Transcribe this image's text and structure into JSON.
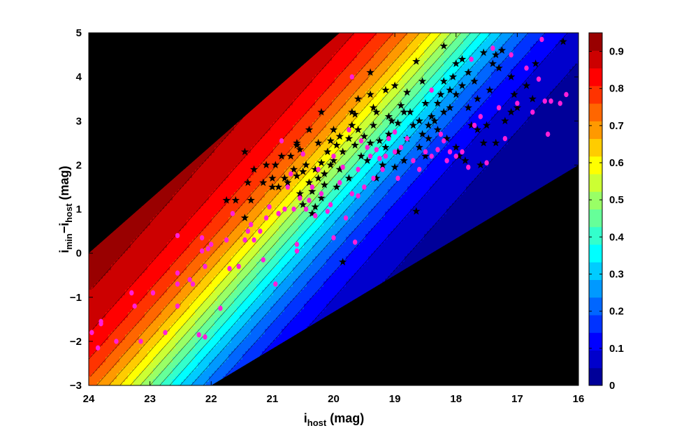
{
  "chart_data": {
    "type": "scatter",
    "xlabel": {
      "main": "i",
      "sub": "host",
      "suffix": " (mag)"
    },
    "ylabel": {
      "main": "i",
      "sub1": "min",
      "dash": "−i",
      "sub2": "host",
      "suffix": " (mag)"
    },
    "xlim": [
      24,
      16
    ],
    "ylim": [
      -3,
      5
    ],
    "x_reversed": true,
    "xticks": [
      "24",
      "23",
      "22",
      "21",
      "20",
      "19",
      "18",
      "17",
      "16"
    ],
    "yticks": [
      "-3",
      "-2",
      "-1",
      "0",
      "1",
      "2",
      "3",
      "4",
      "5"
    ],
    "colorbar": {
      "range": [
        0,
        0.95
      ],
      "ticks": [
        "0",
        "0.1",
        "0.2",
        "0.3",
        "0.4",
        "0.5",
        "0.6",
        "0.7",
        "0.8",
        "0.9"
      ],
      "colormap": "jet",
      "levels": 20
    },
    "masked_color": "#000000",
    "valid_region": {
      "upper_boundary": [
        [
          24,
          0
        ],
        [
          19.9,
          5
        ]
      ],
      "lower_boundary": [
        [
          22,
          -3
        ],
        [
          16,
          2
        ]
      ]
    },
    "series": [
      {
        "marker": "star",
        "color": "#000000",
        "points": [
          [
            21.75,
            1.2
          ],
          [
            21.6,
            1.2
          ],
          [
            21.45,
            0.8
          ],
          [
            21.35,
            1.2
          ],
          [
            21.4,
            1.6
          ],
          [
            21.3,
            1.9
          ],
          [
            21.45,
            2.3
          ],
          [
            21.15,
            1.6
          ],
          [
            21.0,
            1.5
          ],
          [
            20.9,
            1.5
          ],
          [
            21.0,
            1.7
          ],
          [
            20.8,
            1.7
          ],
          [
            20.95,
            2.0
          ],
          [
            20.85,
            2.2
          ],
          [
            20.65,
            1.9
          ],
          [
            20.7,
            2.2
          ],
          [
            20.55,
            2.35
          ],
          [
            20.6,
            2.45
          ],
          [
            20.45,
            2.0
          ],
          [
            20.5,
            1.85
          ],
          [
            20.4,
            1.6
          ],
          [
            20.35,
            1.4
          ],
          [
            20.25,
            1.7
          ],
          [
            20.3,
            1.9
          ],
          [
            20.15,
            1.8
          ],
          [
            20.2,
            2.05
          ],
          [
            20.1,
            2.3
          ],
          [
            20.25,
            2.5
          ],
          [
            20.05,
            2.55
          ],
          [
            20.0,
            2.8
          ],
          [
            19.95,
            2.45
          ],
          [
            19.85,
            2.3
          ],
          [
            19.75,
            2.6
          ],
          [
            19.7,
            2.9
          ],
          [
            19.65,
            3.15
          ],
          [
            19.55,
            2.2
          ],
          [
            19.5,
            2.65
          ],
          [
            19.4,
            2.5
          ],
          [
            19.35,
            2.9
          ],
          [
            19.3,
            3.2
          ],
          [
            19.2,
            2.0
          ],
          [
            19.15,
            2.4
          ],
          [
            19.1,
            2.7
          ],
          [
            19.05,
            3.0
          ],
          [
            18.95,
            2.3
          ],
          [
            18.9,
            3.35
          ],
          [
            18.85,
            2.1
          ],
          [
            18.8,
            2.6
          ],
          [
            18.7,
            2.9
          ],
          [
            18.6,
            2.4
          ],
          [
            18.5,
            2.2
          ],
          [
            18.45,
            2.9
          ],
          [
            18.4,
            3.1
          ],
          [
            18.3,
            3.4
          ],
          [
            18.25,
            3.6
          ],
          [
            18.2,
            3.9
          ],
          [
            18.1,
            3.7
          ],
          [
            18.05,
            4.0
          ],
          [
            18.0,
            4.3
          ],
          [
            17.9,
            3.8
          ],
          [
            17.8,
            4.1
          ],
          [
            17.7,
            3.9
          ],
          [
            17.65,
            2.8
          ],
          [
            17.5,
            2.9
          ],
          [
            17.4,
            4.3
          ],
          [
            17.35,
            2.5
          ],
          [
            17.3,
            4.2
          ],
          [
            17.2,
            3.0
          ],
          [
            17.1,
            3.2
          ],
          [
            17.05,
            3.6
          ],
          [
            17.0,
            3.3
          ],
          [
            16.85,
            3.8
          ],
          [
            16.75,
            3.5
          ],
          [
            16.25,
            4.8
          ],
          [
            16.7,
            4.3
          ],
          [
            17.35,
            4.5
          ],
          [
            17.55,
            4.55
          ],
          [
            18.2,
            4.7
          ],
          [
            17.9,
            4.4
          ],
          [
            18.65,
            4.35
          ],
          [
            18.5,
            3.4
          ],
          [
            19.4,
            4.1
          ],
          [
            19.6,
            3.5
          ],
          [
            20.6,
            2.5
          ],
          [
            20.35,
            0.9
          ],
          [
            20.5,
            1.1
          ],
          [
            20.2,
            1.25
          ],
          [
            19.85,
            -0.2
          ],
          [
            19.3,
            1.7
          ],
          [
            18.65,
            0.95
          ],
          [
            19.0,
            1.95
          ],
          [
            19.9,
            1.9
          ],
          [
            20.0,
            2.1
          ],
          [
            20.2,
            3.2
          ],
          [
            19.7,
            3.2
          ],
          [
            19.4,
            3.6
          ],
          [
            19.15,
            3.7
          ],
          [
            19.0,
            3.8
          ],
          [
            18.8,
            3.65
          ],
          [
            18.75,
            3.2
          ],
          [
            18.6,
            3.0
          ],
          [
            18.35,
            3.0
          ],
          [
            18.1,
            3.3
          ],
          [
            17.95,
            2.2
          ],
          [
            17.85,
            2.1
          ],
          [
            17.75,
            2.9
          ],
          [
            17.55,
            2.5
          ],
          [
            17.6,
            2.0
          ],
          [
            18.0,
            2.4
          ],
          [
            18.15,
            2.6
          ],
          [
            18.45,
            2.6
          ],
          [
            18.55,
            3.9
          ],
          [
            18.95,
            2.95
          ],
          [
            19.25,
            2.55
          ],
          [
            19.45,
            2.1
          ],
          [
            19.65,
            2.45
          ],
          [
            19.9,
            2.65
          ],
          [
            20.05,
            2.0
          ],
          [
            20.4,
            2.8
          ],
          [
            20.75,
            1.6
          ],
          [
            20.6,
            1.75
          ],
          [
            21.1,
            2.0
          ],
          [
            20.55,
            1.35
          ],
          [
            20.3,
            1.05
          ],
          [
            20.15,
            1.55
          ],
          [
            19.95,
            1.5
          ],
          [
            19.75,
            1.7
          ],
          [
            19.6,
            2.8
          ],
          [
            19.35,
            3.3
          ],
          [
            19.1,
            3.1
          ],
          [
            18.85,
            3.2
          ],
          [
            18.55,
            2.7
          ],
          [
            18.3,
            2.8
          ],
          [
            18.2,
            3.2
          ],
          [
            18.0,
            3.6
          ],
          [
            17.8,
            3.3
          ],
          [
            17.65,
            3.5
          ],
          [
            17.45,
            3.7
          ],
          [
            17.25,
            4.6
          ],
          [
            17.1,
            4.0
          ]
        ]
      },
      {
        "marker": "dot",
        "color": "#ff1fd9",
        "points": [
          [
            23.95,
            -1.8
          ],
          [
            23.85,
            -2.15
          ],
          [
            23.8,
            -1.6
          ],
          [
            23.8,
            -1.55
          ],
          [
            23.55,
            -2.0
          ],
          [
            23.3,
            -0.9
          ],
          [
            23.25,
            -1.2
          ],
          [
            23.15,
            -2.0
          ],
          [
            22.95,
            -0.9
          ],
          [
            22.75,
            -1.8
          ],
          [
            22.55,
            -1.2
          ],
          [
            22.55,
            -0.7
          ],
          [
            22.55,
            -0.45
          ],
          [
            22.55,
            0.4
          ],
          [
            22.35,
            -0.6
          ],
          [
            22.3,
            -0.7
          ],
          [
            22.2,
            -1.85
          ],
          [
            22.15,
            0.35
          ],
          [
            22.15,
            0.05
          ],
          [
            22.1,
            -0.3
          ],
          [
            22.1,
            -1.9
          ],
          [
            22.05,
            0.1
          ],
          [
            22.0,
            0.2
          ],
          [
            21.85,
            -1.25
          ],
          [
            21.75,
            0.3
          ],
          [
            21.7,
            -0.35
          ],
          [
            21.65,
            0.9
          ],
          [
            21.55,
            -0.3
          ],
          [
            21.45,
            0.3
          ],
          [
            21.4,
            0.5
          ],
          [
            21.35,
            0.65
          ],
          [
            21.2,
            0.5
          ],
          [
            21.15,
            -0.15
          ],
          [
            21.05,
            1.05
          ],
          [
            20.95,
            -0.7
          ],
          [
            20.9,
            0.9
          ],
          [
            20.8,
            1.0
          ],
          [
            20.75,
            1.5
          ],
          [
            20.7,
            1.8
          ],
          [
            20.6,
            0.2
          ],
          [
            20.6,
            0.05
          ],
          [
            20.55,
            1.25
          ],
          [
            20.45,
            1.0
          ],
          [
            20.4,
            1.2
          ],
          [
            20.35,
            1.5
          ],
          [
            20.3,
            0.85
          ],
          [
            20.25,
            1.9
          ],
          [
            20.1,
            0.95
          ],
          [
            20.05,
            1.1
          ],
          [
            20.0,
            0.35
          ],
          [
            19.9,
            1.6
          ],
          [
            19.8,
            0.8
          ],
          [
            19.7,
            1.35
          ],
          [
            19.65,
            0.25
          ],
          [
            19.6,
            1.9
          ],
          [
            19.5,
            1.5
          ],
          [
            19.4,
            2.2
          ],
          [
            19.3,
            2.35
          ],
          [
            19.2,
            1.9
          ],
          [
            19.1,
            2.6
          ],
          [
            19.0,
            2.75
          ],
          [
            18.9,
            2.4
          ],
          [
            18.8,
            2.6
          ],
          [
            18.7,
            2.1
          ],
          [
            18.6,
            1.9
          ],
          [
            18.5,
            2.3
          ],
          [
            18.4,
            2.2
          ],
          [
            18.3,
            2.35
          ],
          [
            18.2,
            2.55
          ],
          [
            18.1,
            2.3
          ],
          [
            18.0,
            2.2
          ],
          [
            17.9,
            2.3
          ],
          [
            17.8,
            1.95
          ],
          [
            17.75,
            4.4
          ],
          [
            17.7,
            2.9
          ],
          [
            17.6,
            3.1
          ],
          [
            17.5,
            2.05
          ],
          [
            17.4,
            4.65
          ],
          [
            17.3,
            3.3
          ],
          [
            17.2,
            2.6
          ],
          [
            17.1,
            4.5
          ],
          [
            17.0,
            3.4
          ],
          [
            16.85,
            4.2
          ],
          [
            16.75,
            3.2
          ],
          [
            16.65,
            3.95
          ],
          [
            16.6,
            4.85
          ],
          [
            16.55,
            3.45
          ],
          [
            16.5,
            2.7
          ],
          [
            16.45,
            3.45
          ],
          [
            16.3,
            3.4
          ],
          [
            16.2,
            3.6
          ],
          [
            19.0,
            2.3
          ],
          [
            19.25,
            2.15
          ],
          [
            19.35,
            1.7
          ],
          [
            19.55,
            2.55
          ],
          [
            19.75,
            2.8
          ],
          [
            20.0,
            2.2
          ],
          [
            20.2,
            1.35
          ],
          [
            20.5,
            2.25
          ],
          [
            20.65,
            1.0
          ],
          [
            21.1,
            0.8
          ],
          [
            21.3,
            0.3
          ],
          [
            20.85,
            2.55
          ],
          [
            19.85,
            1.95
          ],
          [
            19.45,
            2.4
          ],
          [
            19.15,
            2.2
          ],
          [
            18.95,
            1.7
          ],
          [
            19.7,
            4.0
          ],
          [
            18.4,
            3.7
          ],
          [
            18.25,
            2.7
          ],
          [
            18.15,
            2.1
          ],
          [
            19.6,
            1.3
          ]
        ]
      }
    ]
  }
}
